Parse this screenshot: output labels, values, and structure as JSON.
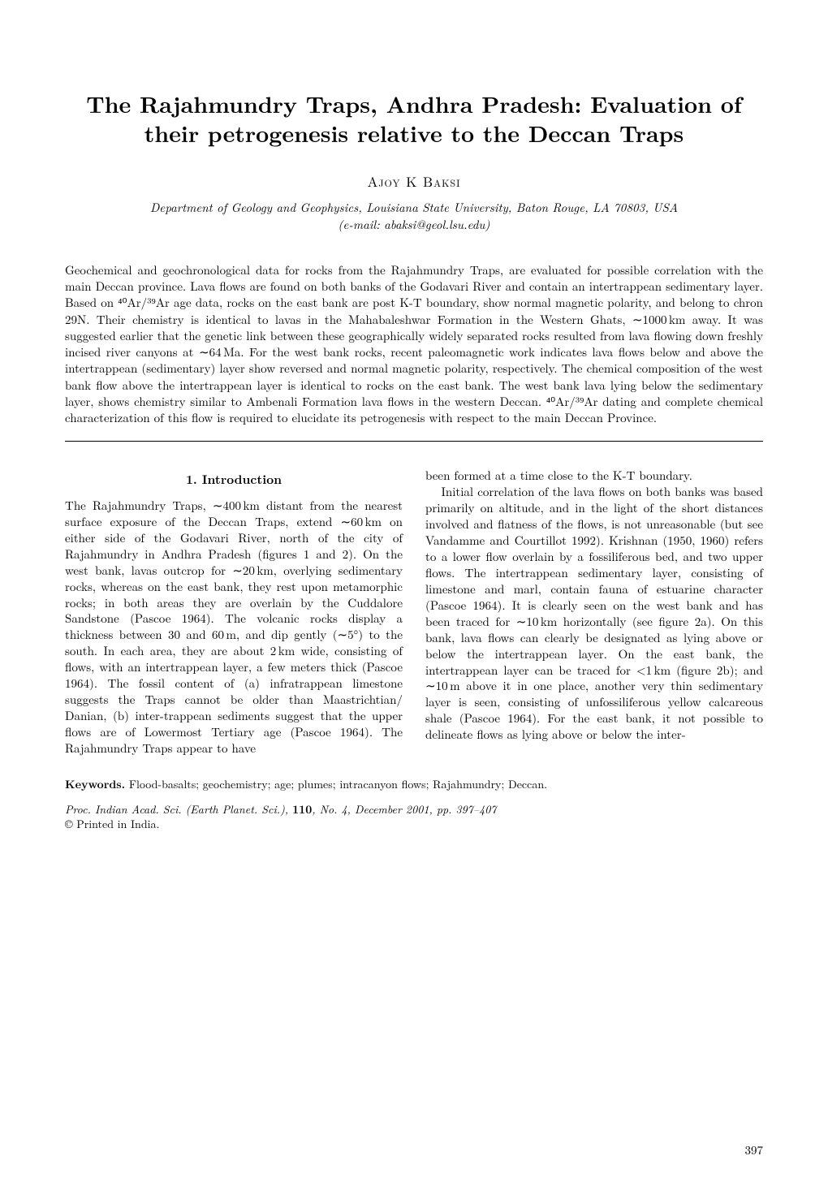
{
  "title": "The Rajahmundry Traps, Andhra Pradesh: Evaluation of their petrogenesis relative to the Deccan Traps",
  "author": "Ajoy K Baksi",
  "affiliation_line1": "Department of Geology and Geophysics, Louisiana State University, Baton Rouge, LA 70803, USA",
  "affiliation_line2": "(e-mail: abaksi@geol.lsu.edu)",
  "abstract": "Geochemical and geochronological data for rocks from the Rajahmundry Traps, are evaluated for possible correlation with the main Deccan province. Lava flows are found on both banks of the Godavari River and contain an intertrappean sedimentary layer. Based on ⁴⁰Ar/³⁹Ar age data, rocks on the east bank are post K-T boundary, show normal magnetic polarity, and belong to chron 29N. Their chemistry is identical to lavas in the Mahabaleshwar Formation in the Western Ghats, ∼1000 km away. It was suggested earlier that the genetic link between these geographically widely separated rocks resulted from lava flowing down freshly incised river canyons at ∼64 Ma. For the west bank rocks, recent paleomagnetic work indicates lava flows below and above the intertrappean (sedimentary) layer show reversed and normal magnetic polarity, respectively. The chemical composition of the west bank flow above the intertrappean layer is identical to rocks on the east bank. The west bank lava lying below the sedimentary layer, shows chemistry similar to Ambenali Formation lava flows in the western Deccan. ⁴⁰Ar/³⁹Ar dating and complete chemical characterization of this flow is required to elucidate its petrogenesis with respect to the main Deccan Province.",
  "section1_heading": "1. Introduction",
  "col_left_p1": "The Rajahmundry Traps, ∼400 km distant from the nearest surface exposure of the Deccan Traps, extend ∼60 km on either side of the Godavari River, north of the city of Rajahmundry in Andhra Pradesh (figures 1 and 2). On the west bank, lavas outcrop for ∼20 km, overlying sedimentary rocks, whereas on the east bank, they rest upon metamorphic rocks; in both areas they are overlain by the Cuddalore Sandstone (Pascoe 1964). The volcanic rocks display a thickness between 30 and 60 m, and dip gently (∼5°) to the south. In each area, they are about 2 km wide, consisting of flows, with an intertrappean layer, a few meters thick (Pascoe 1964). The fossil content of (a) infratrappean limestone suggests the Traps cannot be older than Maastrichtian/ Danian, (b) inter-trappean sediments suggest that the upper flows are of Lowermost Tertiary age (Pascoe 1964). The Rajahmundry Traps appear to have",
  "col_right_p1": "been formed at a time close to the K-T boundary.",
  "col_right_p2": "Initial correlation of the lava flows on both banks was based primarily on altitude, and in the light of the short distances involved and flatness of the flows, is not unreasonable (but see Vandamme and Courtillot 1992). Krishnan (1950, 1960) refers to a lower flow overlain by a fossiliferous bed, and two upper flows. The intertrappean sedimentary layer, consisting of limestone and marl, contain fauna of estuarine character (Pascoe 1964). It is clearly seen on the west bank and has been traced for ∼10 km horizontally (see figure 2a). On this bank, lava flows can clearly be designated as lying above or below the intertrappean layer. On the east bank, the intertrappean layer can be traced for <1 km (figure 2b); and ∼10 m above it in one place, another very thin sedimentary layer is seen, consisting of unfossiliferous yellow calcareous shale (Pascoe 1964). For the east bank, it not possible to delineate flows as lying above or below the inter-",
  "keywords_label": "Keywords.",
  "keywords": "Flood-basalts; geochemistry; age; plumes; intracanyon flows; Rajahmundry; Deccan.",
  "footer_journal": "Proc. Indian Acad. Sci. (Earth Planet. Sci.),",
  "footer_volissue": "110",
  "footer_issue_details": ", No. 4, December 2001, pp. 397–407",
  "footer_printed": "© Printed in India.",
  "page_number": "397"
}
